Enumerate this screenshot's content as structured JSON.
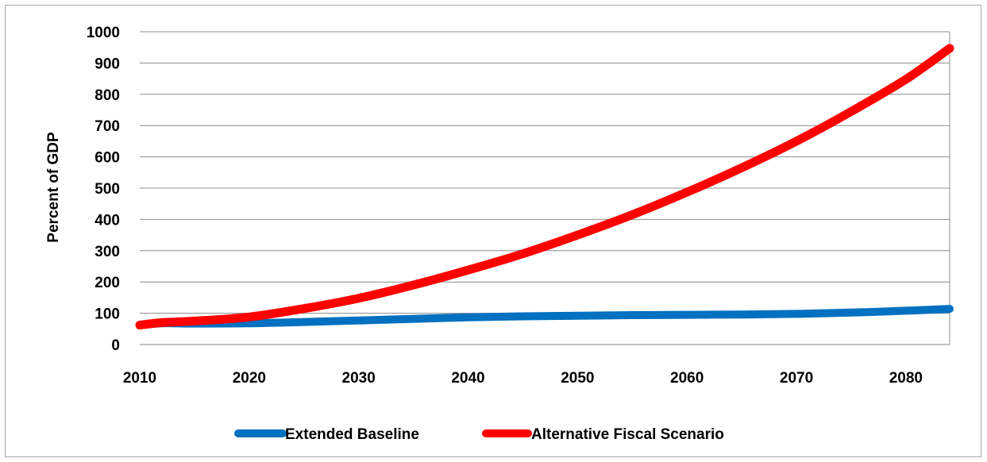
{
  "chart_data": {
    "type": "line",
    "title": "",
    "xlabel": "",
    "ylabel": "Percent of GDP",
    "xlim": [
      2010,
      2084
    ],
    "ylim": [
      0,
      1000
    ],
    "x_ticks": [
      2010,
      2020,
      2030,
      2040,
      2050,
      2060,
      2070,
      2080
    ],
    "y_ticks": [
      0,
      100,
      200,
      300,
      400,
      500,
      600,
      700,
      800,
      900,
      1000
    ],
    "grid": true,
    "legend_position": "bottom",
    "series": [
      {
        "name": "Extended Baseline",
        "color": "#0070c0",
        "x": [
          2010,
          2012,
          2015,
          2020,
          2025,
          2030,
          2035,
          2040,
          2045,
          2050,
          2055,
          2060,
          2065,
          2070,
          2075,
          2080,
          2084
        ],
        "y": [
          62,
          68,
          67,
          68,
          72,
          77,
          82,
          87,
          90,
          92,
          94,
          95,
          96,
          98,
          102,
          108,
          114
        ]
      },
      {
        "name": "Alternative Fiscal Scenario",
        "color": "#ff0000",
        "x": [
          2010,
          2012,
          2015,
          2020,
          2025,
          2030,
          2035,
          2040,
          2045,
          2050,
          2055,
          2060,
          2065,
          2070,
          2075,
          2080,
          2084
        ],
        "y": [
          62,
          70,
          75,
          88,
          115,
          148,
          190,
          238,
          290,
          350,
          415,
          487,
          565,
          650,
          745,
          848,
          947
        ]
      }
    ]
  }
}
